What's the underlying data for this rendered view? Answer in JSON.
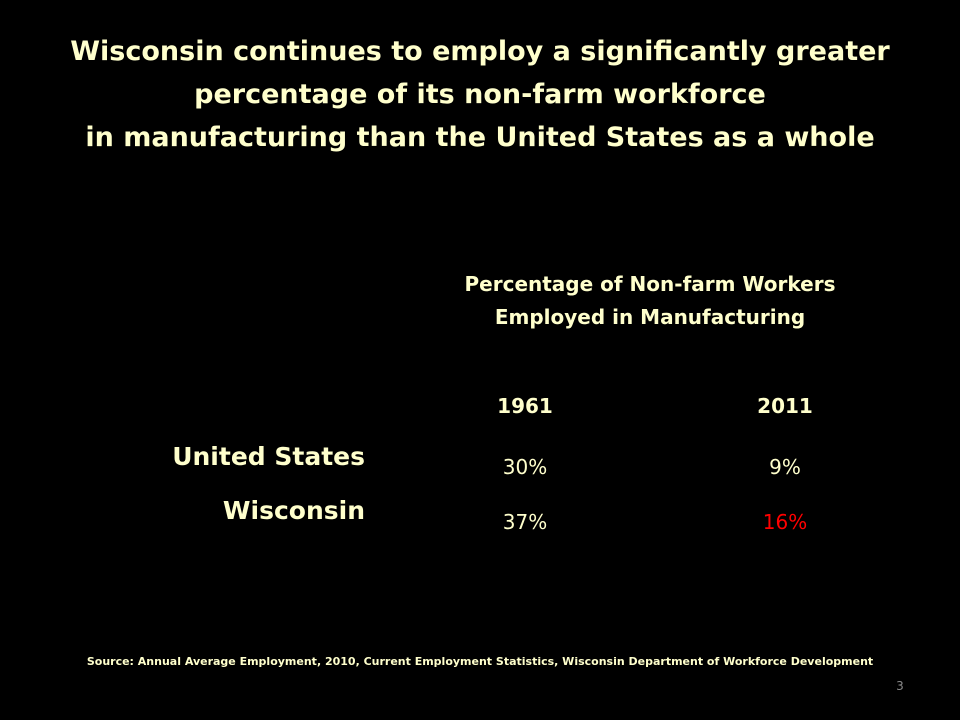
{
  "slide": {
    "title_lines": [
      "Wisconsin continues to employ a significantly greater",
      "percentage of its non-farm workforce",
      "in manufacturing than the United States as a whole"
    ],
    "table_heading_lines": [
      "Percentage of Non-farm Workers",
      "Employed in Manufacturing"
    ],
    "columns": [
      "1961",
      "2011"
    ],
    "rows": [
      {
        "label": "United States",
        "values": [
          "30%",
          "9%"
        ]
      },
      {
        "label": "Wisconsin",
        "values": [
          "37%",
          "16%"
        ]
      }
    ],
    "highlight_color": "#FF0000",
    "text_color": "#FFFFCC",
    "source": "Source: Annual Average Employment, 2010,  Current Employment Statistics, Wisconsin Department of Workforce Development",
    "slide_number": "3"
  }
}
